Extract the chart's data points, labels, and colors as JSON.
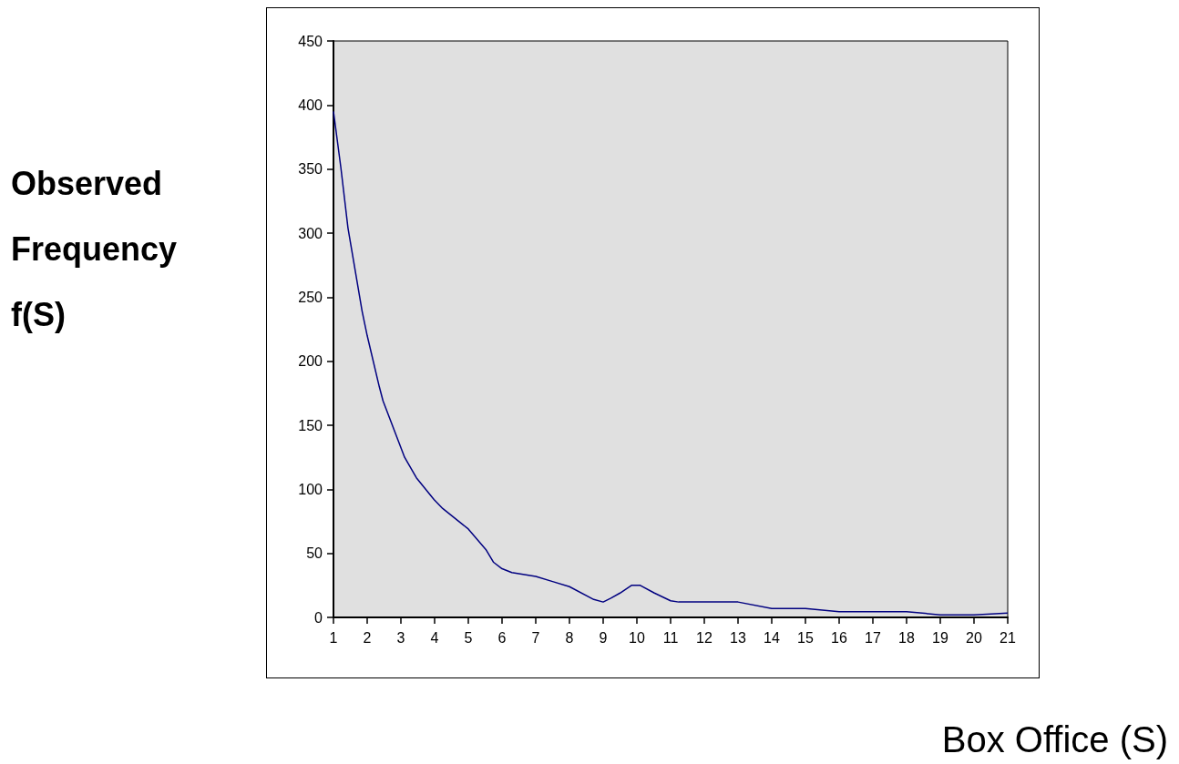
{
  "chart_data": {
    "type": "line",
    "xlabel": "Box Office (S)",
    "ylabel": "Observed Frequency f(S)",
    "x": [
      1,
      1.22,
      1.43,
      1.85,
      2,
      2.36,
      2.47,
      3.11,
      3.46,
      3.98,
      4.24,
      5,
      5.52,
      5.75,
      6,
      6.29,
      7,
      7.5,
      8,
      8.72,
      9,
      9.23,
      9.5,
      9.84,
      10.1,
      10.52,
      11,
      11.24,
      13,
      14,
      15,
      16,
      18,
      19,
      20,
      21
    ],
    "series": [
      {
        "color": "#000080",
        "values": [
          395,
          351,
          304,
          239,
          220,
          180,
          169,
          125,
          109,
          92,
          85,
          69,
          53,
          43,
          38,
          35,
          32,
          28,
          24,
          14,
          12,
          15,
          19,
          25,
          25,
          19,
          13,
          12,
          12,
          7,
          7,
          4.5,
          4.5,
          2,
          2,
          3.3
        ]
      }
    ],
    "xlim": [
      1,
      21
    ],
    "xticks": [
      1,
      2,
      3,
      4,
      5,
      6,
      7,
      8,
      9,
      10,
      11,
      12,
      13,
      14,
      15,
      16,
      17,
      18,
      19,
      20,
      21
    ],
    "ylim": [
      0,
      450
    ],
    "yticks": [
      0,
      50,
      100,
      150,
      200,
      250,
      300,
      350,
      400,
      450
    ],
    "grid": false,
    "marker": "none",
    "line_style": "solid"
  }
}
